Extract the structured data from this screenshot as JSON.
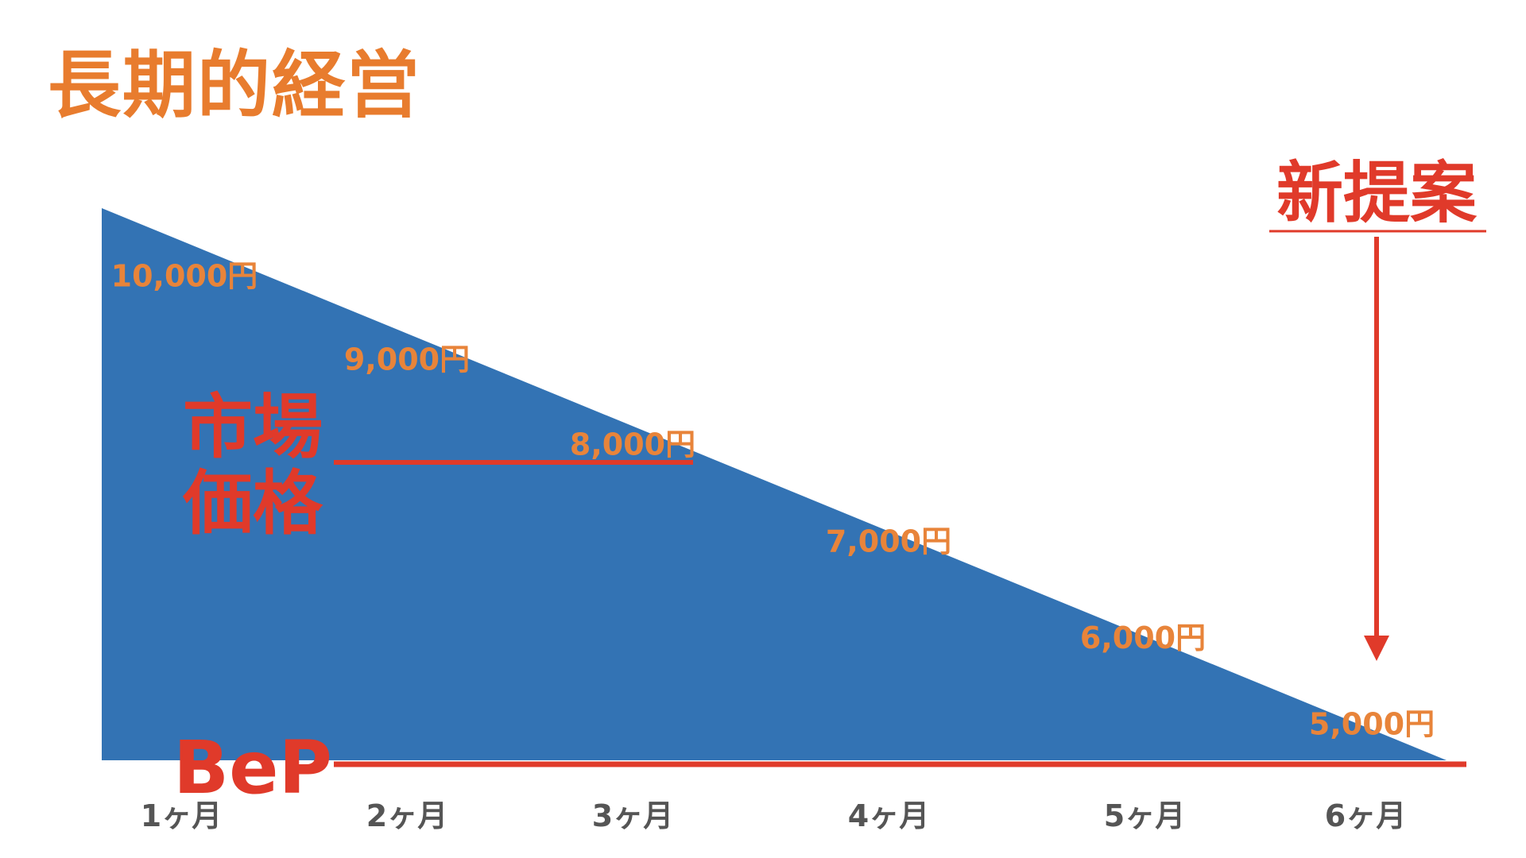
{
  "title": "長期的経営",
  "colors": {
    "title": "#e87c2e",
    "area": "#3373b4",
    "red": "#e03a2a",
    "value_label": "#e8843a",
    "month_label": "#555555"
  },
  "annotations": {
    "market_price_line1": "市場",
    "market_price_line2": "価格",
    "bep": "BeP",
    "new_proposal": "新提案"
  },
  "chart_data": {
    "type": "area",
    "title": "長期的経営",
    "categories": [
      "1ヶ月",
      "2ヶ月",
      "3ヶ月",
      "4ヶ月",
      "5ヶ月",
      "6ヶ月"
    ],
    "value_labels": [
      "10,000円",
      "9,000円",
      "8,000円",
      "7,000円",
      "6,000円",
      "5,000円"
    ],
    "values": [
      10000,
      9000,
      8000,
      7000,
      6000,
      5000
    ],
    "reference_lines": [
      {
        "label": "市場価格",
        "value": 8000
      },
      {
        "label": "BeP",
        "value": 5000
      }
    ],
    "marker": {
      "label": "新提案",
      "category": "6ヶ月"
    }
  }
}
